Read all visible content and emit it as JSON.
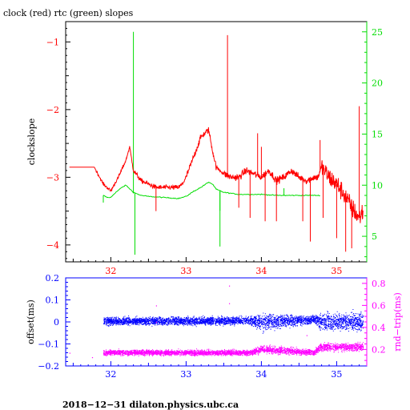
{
  "chart_data": [
    {
      "type": "line",
      "title": "clock (red) rtc (green) slopes",
      "xlabel": "",
      "ylabel": "clockslope",
      "xlim": [
        31.4,
        35.4
      ],
      "ylim": [
        -4.25,
        -0.7
      ],
      "y2lim": [
        2.5,
        26
      ],
      "grid": false,
      "x_ticks": [
        "32",
        "33",
        "34",
        "35"
      ],
      "y_ticks": [
        "−1",
        "−2",
        "−3",
        "−4"
      ],
      "y2_ticks": [
        "5",
        "10",
        "15",
        "20",
        "25"
      ],
      "colors": {
        "axis": "#000000",
        "clock": "#ff0000",
        "rtc": "#00dd00"
      },
      "series": [
        {
          "name": "clock",
          "axis": "left",
          "color": "#ff0000",
          "x": [
            31.45,
            31.78,
            31.9,
            32.0,
            32.1,
            32.2,
            32.25,
            32.3,
            32.4,
            32.5,
            32.6,
            32.7,
            32.8,
            32.9,
            32.95,
            33.0,
            33.1,
            33.2,
            33.3,
            33.35,
            33.4,
            33.5,
            33.6,
            33.7,
            33.8,
            33.9,
            34.0,
            34.1,
            34.2,
            34.3,
            34.4,
            34.5,
            34.6,
            34.7,
            34.75,
            34.8,
            34.9,
            35.0,
            35.1,
            35.2,
            35.3,
            35.35
          ],
          "y": [
            -2.85,
            -2.85,
            -3.1,
            -3.2,
            -3.0,
            -2.75,
            -2.55,
            -2.9,
            -3.05,
            -3.1,
            -3.15,
            -3.15,
            -3.15,
            -3.15,
            -3.1,
            -3.0,
            -2.7,
            -2.4,
            -2.3,
            -2.6,
            -2.85,
            -2.95,
            -3.0,
            -3.0,
            -2.9,
            -2.95,
            -3.0,
            -2.9,
            -3.05,
            -3.0,
            -2.9,
            -3.0,
            -3.05,
            -3.0,
            -3.0,
            -2.85,
            -3.0,
            -3.1,
            -3.25,
            -3.45,
            -3.6,
            -3.5
          ],
          "spikes": [
            {
              "x": 32.6,
              "y": -3.5
            },
            {
              "x": 33.55,
              "y": -0.9
            },
            {
              "x": 33.7,
              "y": -3.45
            },
            {
              "x": 33.85,
              "y": -3.6
            },
            {
              "x": 33.95,
              "y": -2.35
            },
            {
              "x": 34.0,
              "y": -2.55
            },
            {
              "x": 34.05,
              "y": -3.65
            },
            {
              "x": 34.2,
              "y": -3.65
            },
            {
              "x": 34.55,
              "y": -3.65
            },
            {
              "x": 34.65,
              "y": -3.95
            },
            {
              "x": 34.78,
              "y": -2.45
            },
            {
              "x": 34.82,
              "y": -3.6
            },
            {
              "x": 35.0,
              "y": -3.9
            },
            {
              "x": 35.12,
              "y": -4.1
            },
            {
              "x": 35.2,
              "y": -4.05
            },
            {
              "x": 35.3,
              "y": -1.95
            }
          ]
        },
        {
          "name": "rtc",
          "axis": "right",
          "color": "#00dd00",
          "x": [
            31.9,
            31.95,
            32.0,
            32.05,
            32.1,
            32.15,
            32.2,
            32.3,
            32.4,
            32.5,
            32.7,
            32.9,
            33.0,
            33.1,
            33.2,
            33.3,
            33.35,
            33.4,
            33.5,
            33.7,
            33.9,
            34.0,
            34.2,
            34.3,
            34.5,
            34.7,
            34.78
          ],
          "y": [
            9.0,
            8.8,
            8.8,
            9.2,
            9.5,
            9.8,
            10.0,
            9.3,
            9.0,
            8.9,
            8.8,
            8.7,
            8.9,
            9.4,
            9.8,
            10.3,
            10.1,
            9.6,
            9.3,
            9.1,
            9.1,
            9.1,
            9.0,
            9.0,
            9.0,
            9.0,
            9.0
          ],
          "spikes": [
            {
              "x": 31.9,
              "y": 8.3
            },
            {
              "x": 32.3,
              "y": 25.0
            },
            {
              "x": 32.32,
              "y": 3.2
            },
            {
              "x": 33.45,
              "y": 7.5
            },
            {
              "x": 33.45,
              "y": 4.0
            },
            {
              "x": 34.3,
              "y": 9.7
            }
          ]
        }
      ]
    },
    {
      "type": "scatter",
      "xlabel": "",
      "ylabel": "offset(ms)",
      "y2label": "rnd−trip(ms)",
      "xlim": [
        31.4,
        35.4
      ],
      "ylim": [
        -0.2,
        0.2
      ],
      "y2lim": [
        0.05,
        0.85
      ],
      "grid": false,
      "x_ticks": [
        "32",
        "33",
        "34",
        "35"
      ],
      "y_ticks": [
        "0.2",
        "0.1",
        "0",
        "−0.1",
        "−0.2"
      ],
      "y2_ticks": [
        "0.8",
        "0.6",
        "0.4",
        "0.2"
      ],
      "colors": {
        "axis": "#0000ff",
        "offset": "#0000ff",
        "roundtrip": "#ff00ff"
      },
      "series": [
        {
          "name": "offset",
          "axis": "left",
          "color": "#0000ff",
          "x": [
            31.9,
            33.85,
            34.0,
            34.7,
            34.78,
            35.35
          ],
          "center": [
            0.003,
            0.005,
            0.0,
            0.01,
            0.0,
            0.0
          ],
          "spread": [
            0.03,
            0.03,
            0.06,
            0.03,
            0.06,
            0.07
          ]
        },
        {
          "name": "roundtrip",
          "axis": "right",
          "color": "#ff00ff",
          "x": [
            31.9,
            33.85,
            34.0,
            34.7,
            34.78,
            35.35
          ],
          "center": [
            0.17,
            0.17,
            0.2,
            0.17,
            0.22,
            0.22
          ],
          "spread": [
            0.04,
            0.04,
            0.06,
            0.04,
            0.06,
            0.07
          ]
        }
      ],
      "outliers": [
        {
          "x": 31.45,
          "y2": 0.17
        },
        {
          "x": 31.75,
          "y2": 0.13
        },
        {
          "x": 32.6,
          "y2": 0.6
        },
        {
          "x": 32.6,
          "y2": 0.45
        },
        {
          "x": 33.57,
          "y2": 0.78
        },
        {
          "x": 33.57,
          "y2": 0.62
        },
        {
          "x": 34.6,
          "y2": 0.33
        }
      ]
    }
  ],
  "footer": {
    "text": "2018−12−31 dilaton.physics.ubc.ca"
  }
}
